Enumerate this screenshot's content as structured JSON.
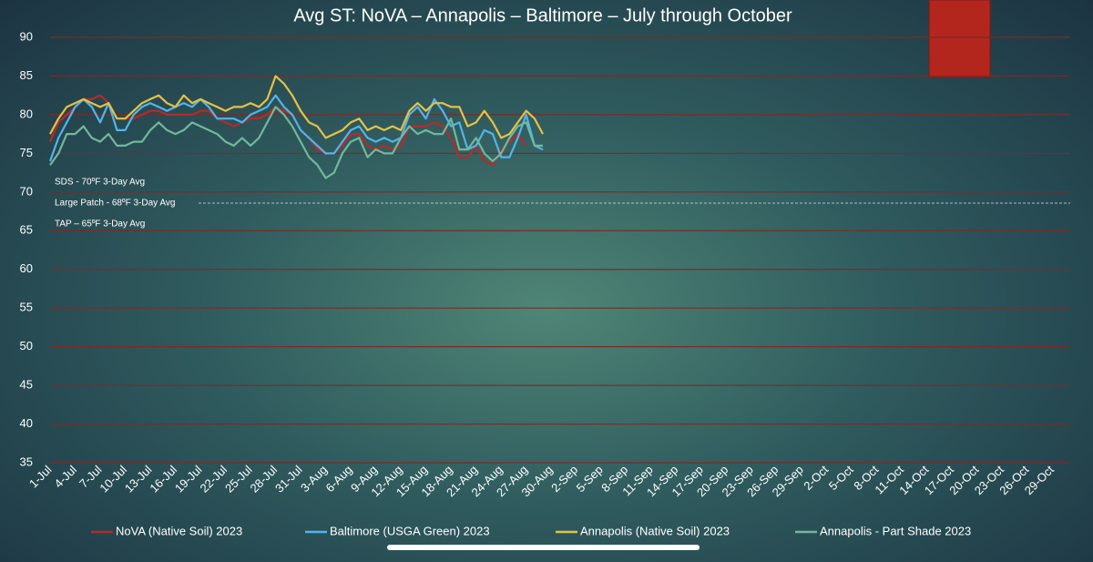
{
  "chart_data": {
    "type": "line",
    "title": "Avg ST: NoVA – Annapolis – Baltimore – July through October",
    "annotations": [
      "SDS - 70ºF 3-Day Avg",
      "Large Patch - 68ºF 3-Day Avg",
      "TAP – 65ºF 3-Day Avg"
    ],
    "categories": [
      "1-Jul",
      null,
      null,
      "4-Jul",
      null,
      null,
      "7-Jul",
      null,
      null,
      "10-Jul",
      null,
      null,
      "13-Jul",
      null,
      null,
      "16-Jul",
      null,
      null,
      "19-Jul",
      null,
      null,
      "22-Jul",
      null,
      null,
      "25-Jul",
      null,
      null,
      "28-Jul",
      null,
      null,
      "31-Jul",
      null,
      null,
      "3-Aug",
      null,
      null,
      "6-Aug",
      null,
      null,
      "9-Aug",
      null,
      null,
      "12-Aug",
      null,
      null,
      "15-Aug",
      null,
      null,
      "18-Aug",
      null,
      null,
      "21-Aug",
      null,
      null,
      "24-Aug",
      null,
      null,
      "27-Aug",
      null,
      null,
      "30-Aug",
      null,
      null,
      "2-Sep",
      null,
      null,
      "5-Sep",
      null,
      null,
      "8-Sep",
      null,
      null,
      "11-Sep",
      null,
      null,
      "14-Sep",
      null,
      null,
      "17-Sep",
      null,
      null,
      "20-Sep",
      null,
      null,
      "23-Sep",
      null,
      null,
      "26-Sep",
      null,
      null,
      "29-Sep",
      null,
      null,
      "2-Oct",
      null,
      null,
      "5-Oct",
      null,
      null,
      "8-Oct",
      null,
      null,
      "11-Oct",
      null,
      null,
      "14-Oct",
      null,
      null,
      "17-Oct",
      null,
      null,
      "20-Oct",
      null,
      null,
      "23-Oct",
      null,
      null,
      "26-Oct",
      null,
      null,
      "29-Oct",
      null,
      null
    ],
    "series": [
      {
        "name": "NoVA (Native Soil) 2023",
        "color": "#b52a2a",
        "values": [
          76.5,
          79,
          80,
          81,
          82,
          82,
          82.5,
          81.5,
          79.5,
          79.5,
          79.5,
          80,
          80.5,
          80.5,
          80,
          80,
          80,
          80,
          80.5,
          80.5,
          79.5,
          79,
          78.5,
          79,
          79.5,
          79.5,
          80,
          81,
          80.5,
          80,
          78,
          77,
          75.5,
          75,
          75,
          76,
          77.5,
          77.5,
          76,
          75.5,
          76,
          75.5,
          76,
          78.5,
          78.5,
          78.5,
          79,
          78.5,
          77,
          74.5,
          74.5,
          76,
          74,
          73.5,
          75.5,
          76.5,
          77.5,
          76,
          null,
          null,
          null,
          null,
          null,
          null,
          null,
          null,
          null,
          null,
          null,
          null,
          null,
          null,
          null,
          null,
          null,
          null,
          null,
          null,
          null,
          null,
          null,
          null,
          null,
          null,
          null,
          null,
          null,
          null,
          null,
          null,
          null,
          null,
          null,
          null,
          null,
          null,
          null,
          null,
          null,
          null,
          null,
          null,
          null,
          null,
          null,
          null,
          null,
          null,
          null,
          null,
          null,
          null,
          null,
          null,
          null,
          null,
          null,
          null,
          null,
          null,
          null,
          null,
          null
        ]
      },
      {
        "name": "Baltimore (USGA Green) 2023",
        "color": "#52b4ec",
        "values": [
          74,
          77,
          79,
          81,
          82,
          81,
          79,
          81.5,
          78,
          78,
          80,
          81,
          81.5,
          81,
          80.5,
          81,
          81.5,
          81,
          82,
          81,
          79.5,
          79.5,
          79.5,
          79,
          80,
          80.5,
          81,
          82.5,
          81,
          80,
          78,
          77,
          76,
          75,
          75,
          76.5,
          78,
          78.5,
          77,
          76.5,
          77,
          76.5,
          77,
          80,
          81,
          79.5,
          82,
          80.5,
          78.5,
          79,
          75.5,
          76,
          78,
          77.5,
          74.5,
          74.5,
          77,
          80,
          76,
          75.5,
          null,
          null,
          null,
          null,
          null,
          null,
          null,
          null,
          null,
          null,
          null,
          null,
          null,
          null,
          null,
          null,
          null,
          null,
          null,
          null,
          null,
          null,
          null,
          null,
          null,
          null,
          null,
          null,
          null,
          null,
          null,
          null,
          null,
          null,
          null,
          null,
          null,
          null,
          null,
          null,
          null,
          null,
          null,
          null,
          null,
          null,
          null,
          null,
          null,
          null,
          null,
          null,
          null,
          null,
          null,
          null,
          null,
          null,
          null,
          null,
          null,
          null,
          null
        ]
      },
      {
        "name": "Annapolis (Native Soil) 2023",
        "color": "#e6c145",
        "values": [
          77.5,
          79.5,
          81,
          81.5,
          82,
          81.5,
          81,
          81.5,
          79.5,
          79.5,
          80.5,
          81.5,
          82,
          82.5,
          81.5,
          81,
          82.5,
          81.5,
          82,
          81.5,
          81,
          80.5,
          81,
          81,
          81.5,
          81,
          82,
          85,
          84,
          82.5,
          80.5,
          79,
          78.5,
          77,
          77.5,
          78,
          79,
          79.5,
          78,
          78.5,
          78,
          78.5,
          78,
          80.5,
          81.5,
          80.5,
          81.5,
          81.5,
          81,
          81,
          78.5,
          79,
          80.5,
          79,
          77,
          77.5,
          79,
          80.5,
          79.5,
          77.5,
          null,
          null,
          null,
          null,
          null,
          null,
          null,
          null,
          null,
          null,
          null,
          null,
          null,
          null,
          null,
          null,
          null,
          null,
          null,
          null,
          null,
          null,
          null,
          null,
          null,
          null,
          null,
          null,
          null,
          null,
          null,
          null,
          null,
          null,
          null,
          null,
          null,
          null,
          null,
          null,
          null,
          null,
          null,
          null,
          null,
          null,
          null,
          null,
          null,
          null,
          null,
          null,
          null,
          null,
          null,
          null,
          null,
          null,
          null,
          null,
          null,
          null,
          null
        ]
      },
      {
        "name": "Annapolis - Part Shade 2023",
        "color": "#72b89c",
        "values": [
          73.5,
          75,
          77.5,
          77.5,
          78.5,
          77,
          76.5,
          77.5,
          76,
          76,
          76.5,
          76.5,
          78,
          79,
          78,
          77.5,
          78,
          79,
          78.5,
          78,
          77.5,
          76.5,
          76,
          77,
          76,
          77,
          79,
          81,
          80,
          78.5,
          76.5,
          74.5,
          73.5,
          71.8,
          72.5,
          75,
          76.5,
          77,
          74.5,
          75.5,
          75,
          75,
          77,
          78.5,
          77.5,
          78,
          77.5,
          77.5,
          79.5,
          75.5,
          75.5,
          77,
          75,
          74,
          75,
          77,
          78.5,
          79,
          76,
          76,
          null,
          null,
          null,
          null,
          null,
          null,
          null,
          null,
          null,
          null,
          null,
          null,
          null,
          null,
          null,
          null,
          null,
          null,
          null,
          null,
          null,
          null,
          null,
          null,
          null,
          null,
          null,
          null,
          null,
          null,
          null,
          null,
          null,
          null,
          null,
          null,
          null,
          null,
          null,
          null,
          null,
          null,
          null,
          null,
          null,
          null,
          null,
          null,
          null,
          null,
          null,
          null,
          null,
          null,
          null,
          null,
          null,
          null,
          null,
          null,
          null,
          null,
          null
        ]
      }
    ],
    "ylim": [
      35,
      90
    ],
    "yticks": [
      35,
      40,
      45,
      50,
      55,
      60,
      65,
      70,
      75,
      80,
      85,
      90
    ],
    "grid": true
  }
}
